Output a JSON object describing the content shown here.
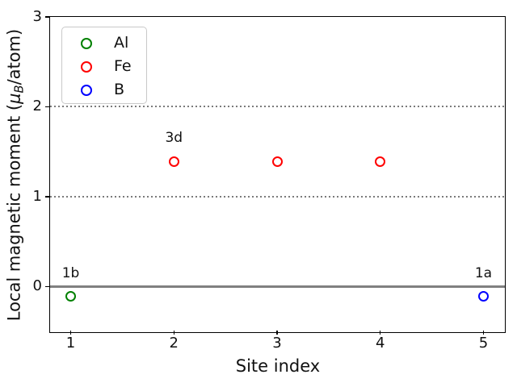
{
  "chart_data": {
    "type": "scatter",
    "title": "",
    "xlabel": "Site index",
    "ylabel": "Local magnetic moment (μB/atom)",
    "ylabel_parts": {
      "prefix": "Local magnetic moment (",
      "mu": "μ",
      "mu_sub": "B",
      "suffix": "/atom)"
    },
    "xlim": [
      0.8,
      5.2
    ],
    "ylim": [
      -0.5,
      3.0
    ],
    "xticks": [
      1,
      2,
      3,
      4,
      5
    ],
    "yticks": [
      0,
      1,
      2,
      3
    ],
    "grid": {
      "dotted_y_values": [
        1,
        2
      ],
      "dotted_color": "#7a7a7a",
      "zero_line_y": 0,
      "zero_line_color": "#808080"
    },
    "series": [
      {
        "name": "Al",
        "color": "#008000",
        "points": [
          {
            "x": 1,
            "y": -0.11,
            "label": "1b"
          }
        ]
      },
      {
        "name": "Fe",
        "color": "#ff0000",
        "points": [
          {
            "x": 2,
            "y": 1.39,
            "label": "3d"
          },
          {
            "x": 3,
            "y": 1.39,
            "label": ""
          },
          {
            "x": 4,
            "y": 1.39,
            "label": ""
          }
        ]
      },
      {
        "name": "B",
        "color": "#0000ff",
        "points": [
          {
            "x": 5,
            "y": -0.11,
            "label": "1a"
          }
        ]
      }
    ],
    "legend": {
      "position": "upper left",
      "entries": [
        {
          "label": "Al",
          "color": "#008000"
        },
        {
          "label": "Fe",
          "color": "#ff0000"
        },
        {
          "label": "B",
          "color": "#0000ff"
        }
      ]
    }
  }
}
